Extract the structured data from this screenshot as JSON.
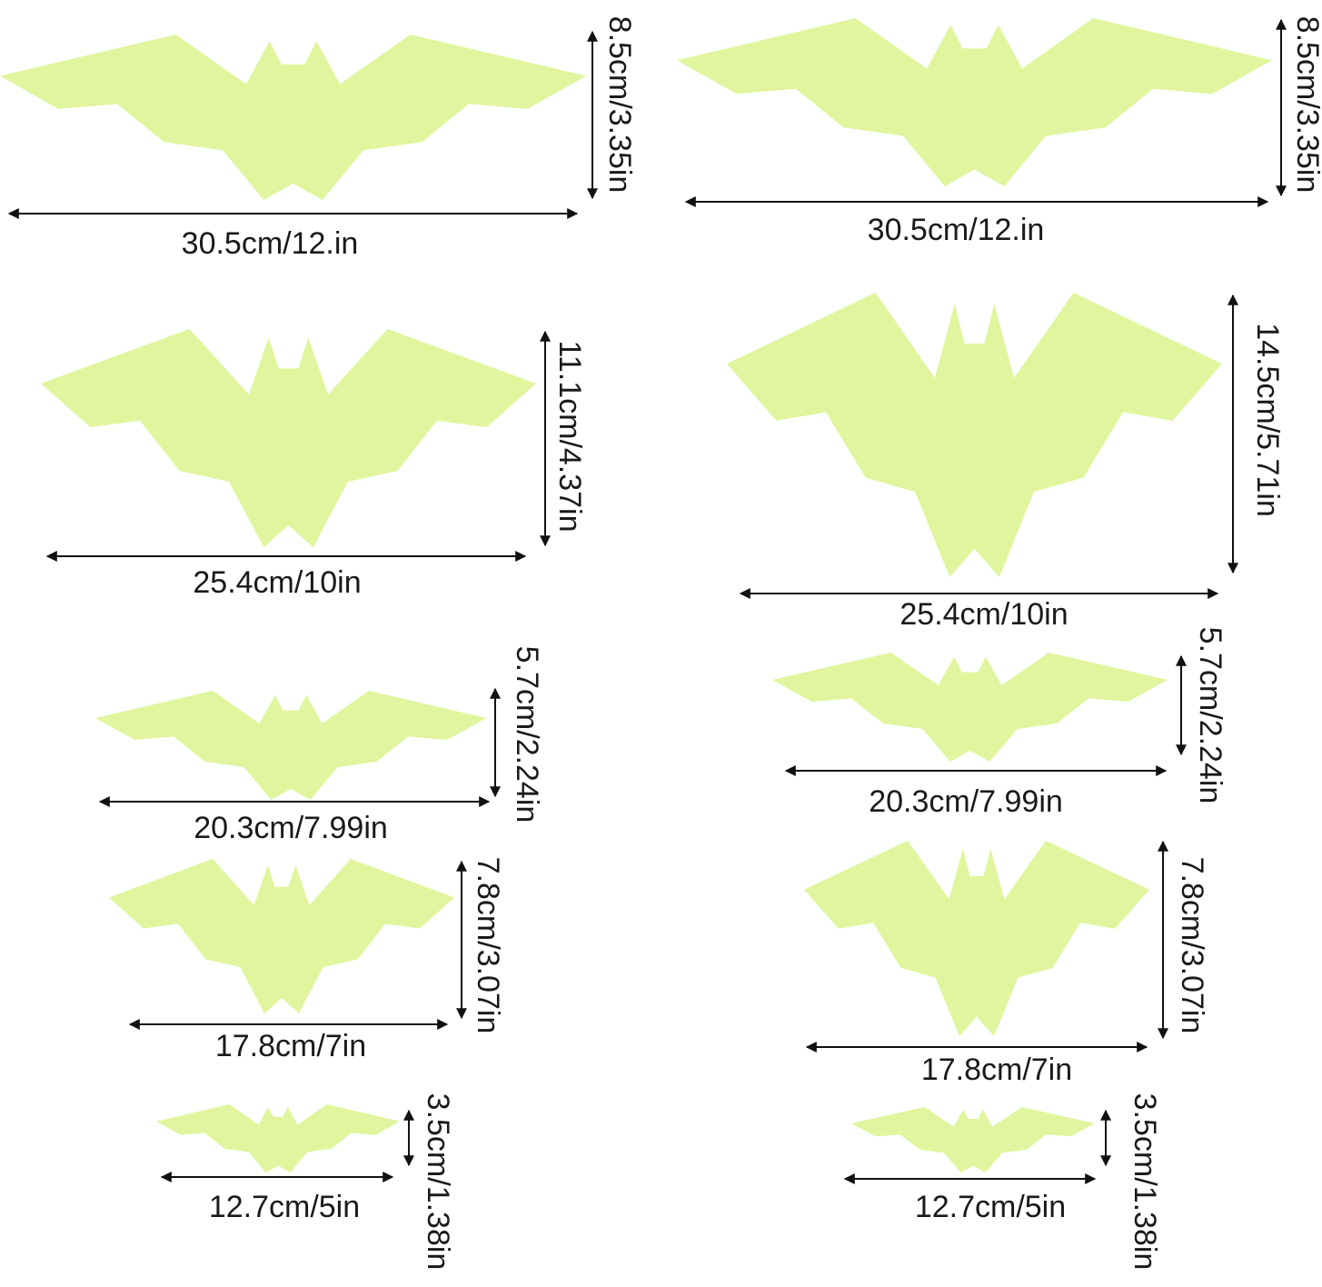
{
  "bats": [
    {
      "width": "30.5cm/12.in",
      "height": "8.5cm/3.35in"
    },
    {
      "width": "30.5cm/12.in",
      "height": "8.5cm/3.35in"
    },
    {
      "width": "25.4cm/10in",
      "height": "11.1cm/4.37in"
    },
    {
      "width": "25.4cm/10in",
      "height": "14.5cm/5.71in"
    },
    {
      "width": "20.3cm/7.99in",
      "height": "5.7cm/2.24in"
    },
    {
      "width": "20.3cm/7.99in",
      "height": "5.7cm/2.24in"
    },
    {
      "width": "17.8cm/7in",
      "height": "7.8cm/3.07in"
    },
    {
      "width": "17.8cm/7in",
      "height": "7.8cm/3.07in"
    },
    {
      "width": "12.7cm/5in",
      "height": "3.5cm/1.38in"
    },
    {
      "width": "12.7cm/5in",
      "height": "3.5cm/1.38in"
    }
  ]
}
